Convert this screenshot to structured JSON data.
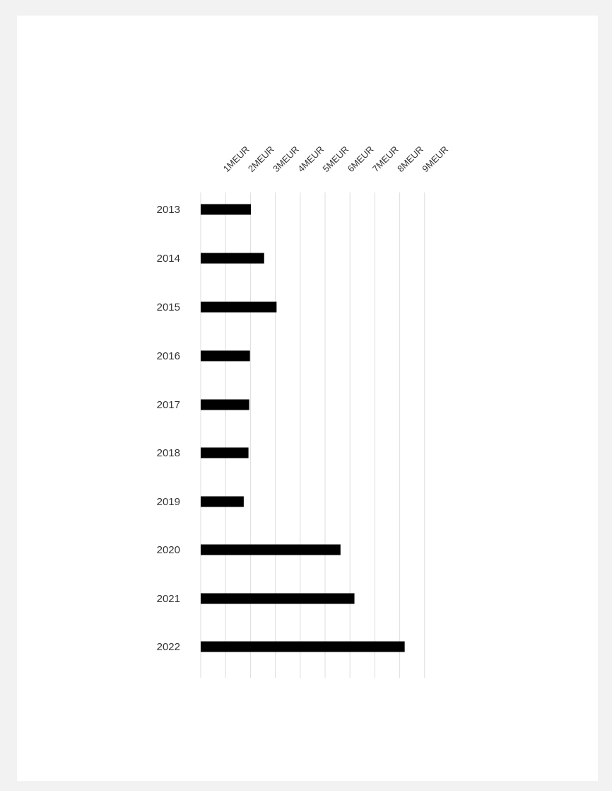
{
  "chart_data": {
    "type": "bar",
    "orientation": "horizontal",
    "categories": [
      "2013",
      "2014",
      "2015",
      "2016",
      "2017",
      "2018",
      "2019",
      "2020",
      "2021",
      "2022"
    ],
    "values": [
      2.02,
      2.55,
      3.05,
      1.98,
      1.95,
      1.92,
      1.73,
      5.62,
      6.18,
      8.2
    ],
    "tick_values": [
      1,
      2,
      3,
      4,
      5,
      6,
      7,
      8,
      9
    ],
    "tick_labels": [
      "1MEUR",
      "2MEUR",
      "3MEUR",
      "4MEUR",
      "5MEUR",
      "6MEUR",
      "7MEUR",
      "8MEUR",
      "9MEUR"
    ],
    "xlim": [
      0,
      9
    ],
    "grid": true,
    "title": "",
    "xlabel": "",
    "ylabel": "",
    "bar_color": "#000000",
    "grid_color": "#dddddd"
  }
}
